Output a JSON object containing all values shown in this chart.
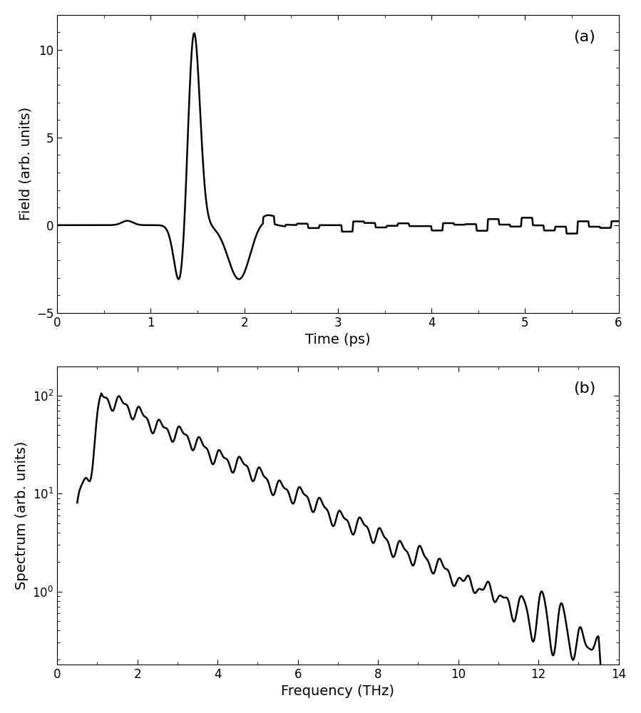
{
  "fig_width": 8.99,
  "fig_height": 10.0,
  "dpi": 100,
  "background_color": "#ffffff",
  "line_color": "#000000",
  "line_width": 1.8,
  "panel_a": {
    "label": "(a)",
    "xlabel": "Time (ps)",
    "ylabel": "Field (arb. units)",
    "xlim": [
      0,
      6
    ],
    "ylim": [
      -5,
      12
    ],
    "xticks": [
      0,
      1,
      2,
      3,
      4,
      5,
      6
    ],
    "yticks": [
      -5,
      0,
      5,
      10
    ]
  },
  "panel_b": {
    "label": "(b)",
    "xlabel": "Frequency (THz)",
    "ylabel": "Spectrum (arb. units)",
    "xlim": [
      0.5,
      14
    ],
    "ylim_log": [
      0.18,
      200
    ],
    "xticks": [
      0,
      2,
      4,
      6,
      8,
      10,
      12,
      14
    ]
  }
}
